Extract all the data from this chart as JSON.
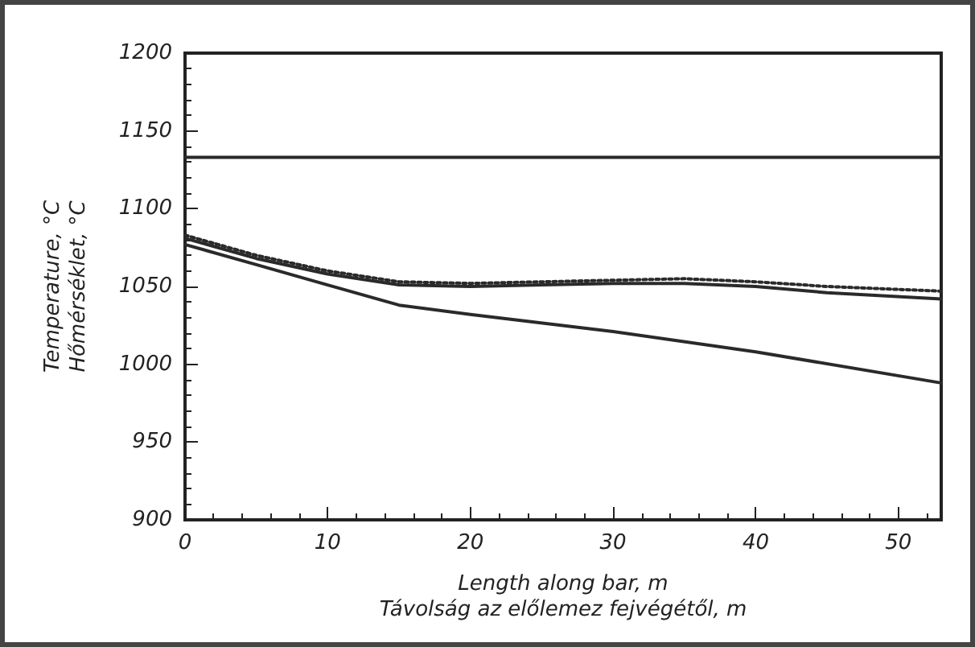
{
  "chart_data": {
    "type": "line",
    "xlabel": "Length along bar, m\nTávolság az előlemez fejvégétől, m",
    "ylabel": "Temperature, °C\nHőmérséklet, °C",
    "xlim": [
      0,
      53
    ],
    "xticks": [
      0,
      10,
      20,
      30,
      40,
      50
    ],
    "ylim": [
      900,
      1200
    ],
    "yticks": [
      900,
      950,
      1000,
      1050,
      1100,
      1150,
      1200
    ],
    "marker": "none",
    "series": [
      {
        "color": "#2a2a2a",
        "line_style": "solid",
        "x": [
          0,
          53
        ],
        "values": [
          1133,
          1133
        ]
      },
      {
        "color": "#2a2a2a",
        "line_style": "dotted",
        "x": [
          0,
          5,
          10,
          15,
          20,
          25,
          30,
          35,
          40,
          45,
          53
        ],
        "values": [
          1083,
          1070,
          1060,
          1053,
          1052,
          1053,
          1054,
          1055,
          1053,
          1050,
          1047
        ]
      },
      {
        "color": "#2a2a2a",
        "line_style": "solid",
        "x": [
          0,
          5,
          10,
          15,
          20,
          25,
          30,
          35,
          40,
          45,
          53
        ],
        "values": [
          1081,
          1068,
          1058,
          1051,
          1050,
          1051,
          1052,
          1052,
          1050,
          1046,
          1042
        ]
      },
      {
        "color": "#2a2a2a",
        "line_style": "solid",
        "x": [
          0,
          5,
          10,
          15,
          20,
          30,
          40,
          53
        ],
        "values": [
          1077,
          1064,
          1051,
          1038,
          1032,
          1021,
          1008,
          988
        ]
      }
    ]
  }
}
